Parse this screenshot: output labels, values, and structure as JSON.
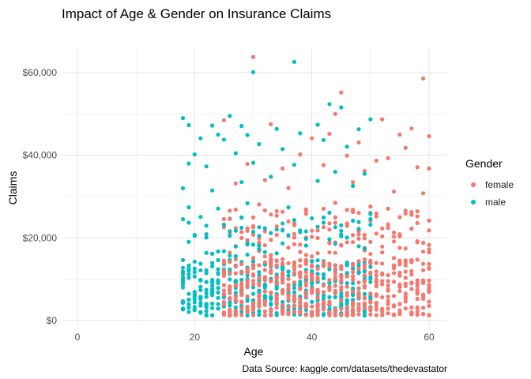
{
  "title": "Impact of Age & Gender on Insurance Claims",
  "caption": "Data Source: kaggle.com/datasets/thedevastator",
  "legend": {
    "title": "Gender",
    "items": [
      {
        "label": "female",
        "color": "#F8766D"
      },
      {
        "label": "male",
        "color": "#00BFC4"
      }
    ]
  },
  "chart_data": {
    "type": "scatter",
    "title": "Impact of Age & Gender on Insurance Claims",
    "xlabel": "Age",
    "ylabel": "Claims",
    "xlim": [
      0,
      60
    ],
    "ylim": [
      0,
      60000
    ],
    "x_ticks": [
      0,
      20,
      40,
      60
    ],
    "x_tick_labels": [
      "0",
      "20",
      "40",
      "60"
    ],
    "y_ticks": [
      0,
      20000,
      40000,
      60000
    ],
    "y_tick_labels": [
      "$0",
      "$20,000",
      "$40,000",
      "$60,000"
    ],
    "grid": true,
    "legend_position": "right",
    "series": [
      {
        "name": "female",
        "color": "#F8766D",
        "points": [
          [
            30,
            63800
          ],
          [
            59,
            58600
          ],
          [
            45,
            55200
          ],
          [
            44,
            50000
          ],
          [
            52,
            48700
          ],
          [
            57,
            46500
          ],
          [
            60,
            44600
          ],
          [
            25,
            48500
          ],
          [
            33,
            47500
          ],
          [
            40,
            44100
          ],
          [
            43,
            45200
          ],
          [
            55,
            45000
          ],
          [
            48,
            43100
          ],
          [
            56,
            41800
          ],
          [
            38,
            40200
          ],
          [
            46,
            39900
          ],
          [
            53,
            39300
          ],
          [
            51,
            38700
          ],
          [
            29,
            37900
          ],
          [
            35,
            36800
          ],
          [
            58,
            37100
          ],
          [
            60,
            36800
          ],
          [
            42,
            37600
          ],
          [
            49,
            36200
          ],
          [
            32,
            34000
          ],
          [
            27,
            33200
          ],
          [
            36,
            32100
          ],
          [
            47,
            33500
          ],
          [
            54,
            31200
          ],
          [
            59,
            30800
          ],
          [
            44,
            28500
          ],
          [
            31,
            28100
          ],
          [
            50,
            27600
          ],
          [
            39,
            26900
          ],
          [
            57,
            25600
          ],
          [
            60,
            24200
          ],
          [
            26,
            24600
          ],
          [
            34,
            22800
          ],
          [
            46,
            23500
          ],
          [
            52,
            22300
          ],
          [
            41,
            21800
          ],
          [
            55,
            20900
          ],
          [
            28,
            21400
          ],
          [
            37,
            20100
          ],
          [
            48,
            19800
          ],
          [
            58,
            19200
          ],
          [
            33,
            19500
          ],
          [
            43,
            18700
          ]
        ],
        "summary": "Dense cluster of female claims between $1,000 and $15,000 across ages 25-60"
      },
      {
        "name": "male",
        "color": "#00BFC4",
        "points": [
          [
            30,
            60100
          ],
          [
            37,
            62600
          ],
          [
            45,
            51600
          ],
          [
            43,
            52400
          ],
          [
            18,
            49000
          ],
          [
            26,
            49500
          ],
          [
            19,
            47300
          ],
          [
            23,
            47200
          ],
          [
            28,
            47100
          ],
          [
            50,
            48700
          ],
          [
            41,
            47400
          ],
          [
            34,
            46400
          ],
          [
            24,
            45000
          ],
          [
            29,
            44900
          ],
          [
            48,
            46300
          ],
          [
            38,
            45300
          ],
          [
            21,
            44100
          ],
          [
            25,
            43800
          ],
          [
            42,
            43700
          ],
          [
            31,
            42700
          ],
          [
            20,
            40200
          ],
          [
            27,
            40500
          ],
          [
            35,
            41500
          ],
          [
            46,
            42100
          ],
          [
            19,
            38000
          ],
          [
            22,
            37300
          ],
          [
            30,
            38200
          ],
          [
            37,
            37700
          ],
          [
            44,
            36000
          ],
          [
            49,
            35500
          ],
          [
            18,
            32000
          ],
          [
            23,
            31500
          ],
          [
            28,
            33500
          ],
          [
            33,
            34800
          ],
          [
            41,
            33800
          ],
          [
            47,
            32600
          ],
          [
            19,
            27400
          ],
          [
            24,
            27100
          ],
          [
            29,
            28400
          ],
          [
            36,
            27400
          ],
          [
            43,
            26100
          ],
          [
            50,
            25800
          ],
          [
            20,
            20500
          ],
          [
            22,
            20100
          ],
          [
            26,
            20500
          ],
          [
            31,
            22600
          ],
          [
            38,
            21400
          ],
          [
            45,
            20800
          ]
        ],
        "summary": "Dense cluster of male claims between $1,000 and $15,000 across ages 18-50"
      }
    ]
  }
}
